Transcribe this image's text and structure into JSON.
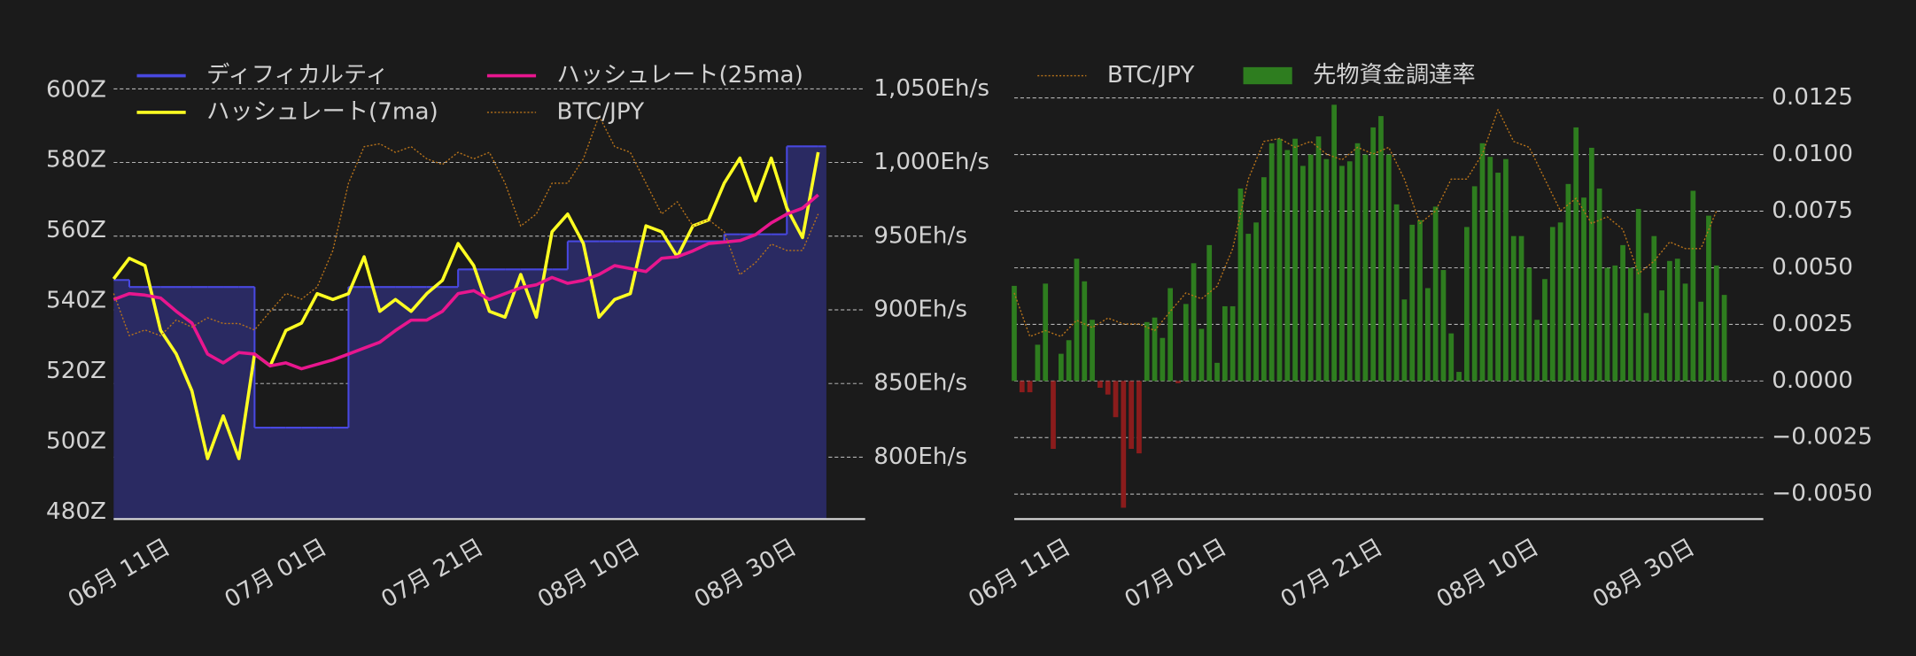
{
  "chart_data": [
    {
      "type": "line",
      "x": [
        "06-04",
        "06-06",
        "06-08",
        "06-10",
        "06-12",
        "06-14",
        "06-16",
        "06-18",
        "06-20",
        "06-22",
        "06-24",
        "06-26",
        "06-28",
        "06-30",
        "07-02",
        "07-04",
        "07-06",
        "07-08",
        "07-10",
        "07-12",
        "07-14",
        "07-16",
        "07-18",
        "07-20",
        "07-22",
        "07-24",
        "07-26",
        "07-28",
        "07-30",
        "08-01",
        "08-03",
        "08-05",
        "08-07",
        "08-09",
        "08-11",
        "08-13",
        "08-15",
        "08-17",
        "08-19",
        "08-21",
        "08-23",
        "08-25",
        "08-27",
        "08-29",
        "08-31",
        "09-02"
      ],
      "xlim": [
        "06-04",
        "09-08"
      ],
      "xticks": [
        {
          "value": "06-11",
          "label": "06月 11日"
        },
        {
          "value": "07-01",
          "label": "07月 01日"
        },
        {
          "value": "07-21",
          "label": "07月 21日"
        },
        {
          "value": "08-10",
          "label": "08月 10日"
        },
        {
          "value": "08-30",
          "label": "08月 30日"
        }
      ],
      "ylim": [
        478,
        610
      ],
      "yticks": [
        {
          "value": 480,
          "label": "480Z"
        },
        {
          "value": 500,
          "label": "500Z"
        },
        {
          "value": 520,
          "label": "520Z"
        },
        {
          "value": 540,
          "label": "540Z"
        },
        {
          "value": 560,
          "label": "560Z"
        },
        {
          "value": 580,
          "label": "580Z"
        },
        {
          "value": 600,
          "label": "600Z"
        }
      ],
      "y_side": "left",
      "y2lim": [
        758,
        1073
      ],
      "y2ticks": [
        {
          "value": 800,
          "label": "800Eh/s"
        },
        {
          "value": 850,
          "label": "850Eh/s"
        },
        {
          "value": 900,
          "label": "900Eh/s"
        },
        {
          "value": 950,
          "label": "950Eh/s"
        },
        {
          "value": 1000,
          "label": "1,000Eh/s"
        },
        {
          "value": 1050,
          "label": "1,050Eh/s"
        }
      ],
      "y3lim": [
        11.87,
        18.35
      ],
      "grid": "y2",
      "legend": "upper left",
      "legend_columns": 2,
      "series": [
        {
          "name": "ディフィカルティ",
          "type": "step",
          "axis": "y",
          "color": "#4848e0",
          "fill": "#2a2a62",
          "values": [
            546,
            544,
            544,
            544,
            544,
            544,
            544,
            544,
            544,
            504,
            504,
            504,
            504,
            504,
            504,
            544,
            544,
            544,
            544,
            544,
            544,
            544,
            549,
            549,
            549,
            549,
            549,
            549,
            549,
            557,
            557,
            557,
            557,
            557,
            557,
            557,
            557,
            557,
            557,
            559,
            559,
            559,
            559,
            584,
            584,
            584
          ]
        },
        {
          "name": "ハッシュレート(7ma)",
          "type": "line",
          "axis": "y2",
          "color": "#ffff22",
          "values": [
            921,
            935,
            930,
            886,
            870,
            845,
            799,
            828,
            799,
            870,
            862,
            886,
            891,
            911,
            907,
            911,
            936,
            899,
            907,
            899,
            911,
            920,
            945,
            930,
            899,
            895,
            924,
            895,
            953,
            965,
            945,
            895,
            907,
            911,
            957,
            953,
            936,
            957,
            961,
            986,
            1003,
            974,
            1003,
            969,
            949,
            1007
          ]
        },
        {
          "name": "ハッシュレート(25ma)",
          "type": "line",
          "axis": "y2",
          "color": "#e8168e",
          "values": [
            907,
            911,
            910,
            908,
            899,
            891,
            870,
            864,
            871,
            870,
            862,
            864,
            860,
            863,
            866,
            870,
            874,
            878,
            886,
            893,
            893,
            899,
            911,
            913,
            907,
            911,
            915,
            917,
            922,
            918,
            920,
            924,
            930,
            928,
            926,
            935,
            936,
            940,
            945,
            946,
            947,
            951,
            959,
            965,
            969,
            978
          ]
        },
        {
          "name": "BTC/JPY",
          "type": "line",
          "axis": "y3",
          "color": "#b8731a",
          "line_style": "dotted",
          "values": [
            15.02,
            14.43,
            14.51,
            14.43,
            14.65,
            14.55,
            14.68,
            14.6,
            14.6,
            14.51,
            14.77,
            15.02,
            14.94,
            15.11,
            15.62,
            16.56,
            17.07,
            17.11,
            16.99,
            17.07,
            16.9,
            16.82,
            16.99,
            16.9,
            16.99,
            16.56,
            15.96,
            16.13,
            16.56,
            16.56,
            16.9,
            17.5,
            17.07,
            16.99,
            16.56,
            16.13,
            16.3,
            15.96,
            16.05,
            15.88,
            15.28,
            15.45,
            15.71,
            15.62,
            15.62,
            16.13
          ]
        }
      ]
    },
    {
      "type": "bar",
      "x": [
        "06-04",
        "06-05",
        "06-06",
        "06-07",
        "06-08",
        "06-09",
        "06-10",
        "06-11",
        "06-12",
        "06-13",
        "06-14",
        "06-15",
        "06-16",
        "06-17",
        "06-18",
        "06-19",
        "06-20",
        "06-21",
        "06-22",
        "06-23",
        "06-24",
        "06-25",
        "06-26",
        "06-27",
        "06-28",
        "06-29",
        "06-30",
        "07-01",
        "07-02",
        "07-03",
        "07-04",
        "07-05",
        "07-06",
        "07-07",
        "07-08",
        "07-09",
        "07-10",
        "07-11",
        "07-12",
        "07-13",
        "07-14",
        "07-15",
        "07-16",
        "07-17",
        "07-18",
        "07-19",
        "07-20",
        "07-21",
        "07-22",
        "07-23",
        "07-24",
        "07-25",
        "07-26",
        "07-27",
        "07-28",
        "07-29",
        "07-30",
        "07-31",
        "08-01",
        "08-02",
        "08-03",
        "08-04",
        "08-05",
        "08-06",
        "08-07",
        "08-08",
        "08-09",
        "08-10",
        "08-11",
        "08-12",
        "08-13",
        "08-14",
        "08-15",
        "08-16",
        "08-17",
        "08-18",
        "08-19",
        "08-20",
        "08-21",
        "08-22",
        "08-23",
        "08-24",
        "08-25",
        "08-26",
        "08-27",
        "08-28",
        "08-29",
        "08-30",
        "08-31",
        "09-01",
        "09-02",
        "09-03"
      ],
      "xlim": [
        "06-04",
        "09-08"
      ],
      "xticks": [
        {
          "value": "06-11",
          "label": "06月 11日"
        },
        {
          "value": "07-01",
          "label": "07月 01日"
        },
        {
          "value": "07-21",
          "label": "07月 21日"
        },
        {
          "value": "08-10",
          "label": "08月 10日"
        },
        {
          "value": "08-30",
          "label": "08月 30日"
        }
      ],
      "ylim": [
        -0.0061,
        0.0144
      ],
      "yticks": [
        {
          "value": -0.005,
          "label": "−0.0050"
        },
        {
          "value": -0.0025,
          "label": "−0.0025"
        },
        {
          "value": 0,
          "label": "0.0000"
        },
        {
          "value": 0.0025,
          "label": "0.0025"
        },
        {
          "value": 0.005,
          "label": "0.0050"
        },
        {
          "value": 0.0075,
          "label": "0.0075"
        },
        {
          "value": 0.01,
          "label": "0.0100"
        },
        0.0125
      ],
      "y_side": "right",
      "y3lim": [
        11.96,
        18.24
      ],
      "grid": "y",
      "legend": "upper left",
      "legend_columns": 2,
      "series": [
        {
          "name": "BTC/JPY",
          "type": "line",
          "axis": "y3",
          "color": "#b8731a",
          "line_style": "dotted",
          "x": [
            "06-04",
            "06-06",
            "06-08",
            "06-10",
            "06-12",
            "06-14",
            "06-16",
            "06-18",
            "06-20",
            "06-22",
            "06-24",
            "06-26",
            "06-28",
            "06-30",
            "07-02",
            "07-04",
            "07-06",
            "07-08",
            "07-10",
            "07-12",
            "07-14",
            "07-16",
            "07-18",
            "07-20",
            "07-22",
            "07-24",
            "07-26",
            "07-28",
            "07-30",
            "08-01",
            "08-03",
            "08-05",
            "08-07",
            "08-09",
            "08-11",
            "08-13",
            "08-15",
            "08-17",
            "08-19",
            "08-21",
            "08-23",
            "08-25",
            "08-27",
            "08-29",
            "08-31",
            "09-02"
          ],
          "values": [
            15.02,
            14.43,
            14.51,
            14.43,
            14.65,
            14.55,
            14.68,
            14.6,
            14.6,
            14.51,
            14.77,
            15.02,
            14.94,
            15.11,
            15.62,
            16.56,
            17.07,
            17.11,
            16.99,
            17.07,
            16.9,
            16.82,
            16.99,
            16.9,
            16.99,
            16.56,
            15.96,
            16.13,
            16.56,
            16.56,
            16.9,
            17.5,
            17.07,
            16.99,
            16.56,
            16.13,
            16.3,
            15.96,
            16.05,
            15.88,
            15.28,
            15.45,
            15.71,
            15.62,
            15.62,
            16.13
          ]
        },
        {
          "name": "先物資金調達率",
          "type": "bar",
          "axis": "y",
          "color": "#2e7d1f",
          "negative_color": "#8b1c1c",
          "values": [
            0.0042,
            -0.0005,
            -0.0005,
            0.0016,
            0.0043,
            -0.003,
            0.0012,
            0.0018,
            0.0054,
            0.0044,
            0.0027,
            -0.0003,
            -0.0006,
            -0.0016,
            -0.0056,
            -0.003,
            -0.0032,
            0.0026,
            0.0028,
            0.0019,
            0.0041,
            -0.0001,
            0.0034,
            0.0052,
            0.0023,
            0.006,
            0.0008,
            0.0033,
            0.0033,
            0.0085,
            0.0065,
            0.007,
            0.009,
            0.0105,
            0.0107,
            0.0102,
            0.0107,
            0.0095,
            0.01,
            0.0108,
            0.0098,
            0.0122,
            0.0095,
            0.0097,
            0.0105,
            0.01,
            0.0112,
            0.0117,
            0.01,
            0.0078,
            0.0036,
            0.0069,
            0.0071,
            0.0041,
            0.0077,
            0.0049,
            0.0021,
            0.0004,
            0.0068,
            0.0086,
            0.0105,
            0.0099,
            0.0092,
            0.0098,
            0.0064,
            0.0064,
            0.005,
            0.0027,
            0.0045,
            0.0068,
            0.007,
            0.0087,
            0.0112,
            0.0081,
            0.0103,
            0.0085,
            0.005,
            0.0051,
            0.006,
            0.005,
            0.0076,
            0.003,
            0.0064,
            0.004,
            0.0053,
            0.0054,
            0.0043,
            0.0084,
            0.0035,
            0.0073,
            0.0051,
            0.0038
          ]
        }
      ]
    }
  ]
}
